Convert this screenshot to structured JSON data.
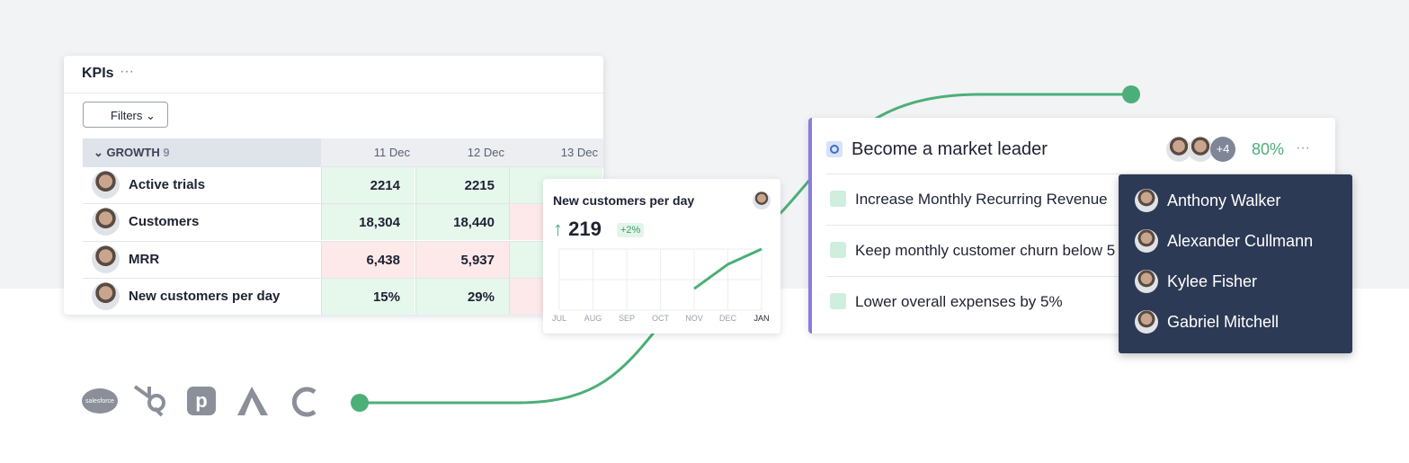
{
  "kpis": {
    "title": "KPIs",
    "filter": "Filters",
    "group": "GROWTH",
    "group_count": "9",
    "columns": [
      "11 Dec",
      "12 Dec",
      "13 Dec"
    ],
    "rows": [
      {
        "name": "Active trials",
        "values": [
          "2214",
          "2215"
        ]
      },
      {
        "name": "Customers",
        "values": [
          "18,304",
          "18,440"
        ]
      },
      {
        "name": "MRR",
        "values": [
          "6,438",
          "5,937"
        ]
      },
      {
        "name": "New customers per day",
        "values": [
          "15%",
          "29%"
        ]
      }
    ]
  },
  "metric_card": {
    "title": "New customers per day",
    "value": "219",
    "change": "+2%",
    "chart_data": {
      "type": "line",
      "categories": [
        "JUL",
        "AUG",
        "SEP",
        "OCT",
        "NOV",
        "DEC",
        "JAN"
      ],
      "values": [
        null,
        null,
        null,
        null,
        35,
        75,
        100
      ],
      "ylim": [
        0,
        100
      ],
      "color": "#4caf78"
    }
  },
  "goal": {
    "title": "Become a market leader",
    "extra_members": "+4",
    "progress": "80%",
    "key_results": [
      "Increase Monthly Recurring Revenue",
      "Keep monthly customer churn below 5",
      "Lower overall expenses by 5%"
    ]
  },
  "members_menu": [
    "Anthony Walker",
    "Alexander Cullmann",
    "Kylee Fisher",
    "Gabriel Mitchell"
  ],
  "integrations": {
    "salesforce": "salesforce"
  }
}
